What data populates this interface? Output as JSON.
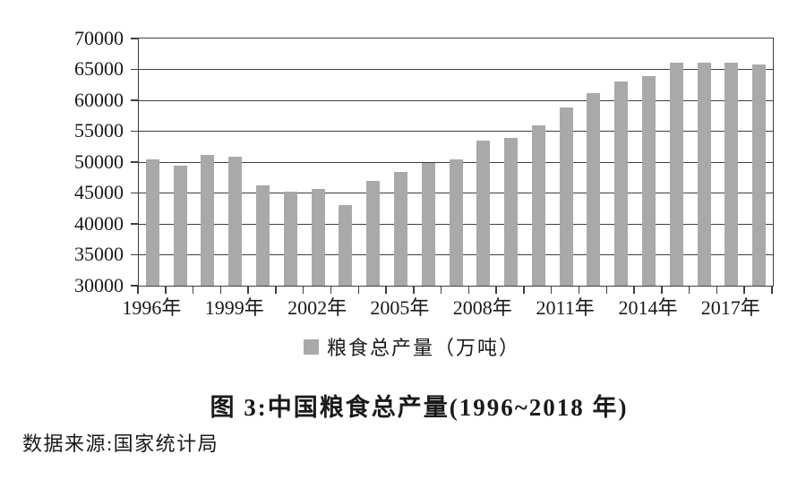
{
  "figure": {
    "title": "图 3:中国粮食总产量(1996~2018 年)",
    "source": "数据来源:国家统计局"
  },
  "chart_data": {
    "type": "bar",
    "title": "图 3:中国粮食总产量(1996~2018 年)",
    "xlabel": "",
    "ylabel": "",
    "legend_label": "粮食总产量（万吨）",
    "legend_position": "bottom",
    "grid": true,
    "categories": [
      1996,
      1997,
      1998,
      1999,
      2000,
      2001,
      2002,
      2003,
      2004,
      2005,
      2006,
      2007,
      2008,
      2009,
      2010,
      2011,
      2012,
      2013,
      2014,
      2015,
      2016,
      2017,
      2018
    ],
    "values": [
      50453.5,
      49417.1,
      51229.5,
      50838.6,
      46217.5,
      45263.7,
      45705.8,
      43069.5,
      46946.9,
      48402.2,
      49804.2,
      50413.9,
      53434.3,
      53940.9,
      55911.3,
      58849.3,
      61222.6,
      63048.2,
      63964.8,
      66060.3,
      66043.5,
      66160.7,
      65789.2
    ],
    "ylim": [
      30000,
      70000
    ],
    "y_step": 5000,
    "y_ticks": [
      30000,
      35000,
      40000,
      45000,
      50000,
      55000,
      60000,
      65000,
      70000
    ],
    "x_tick_labels": [
      "1996年",
      "1999年",
      "2002年",
      "2005年",
      "2008年",
      "2011年",
      "2014年",
      "2017年"
    ],
    "x_tick_step": 3,
    "bar_color": "#a9a9a9",
    "axis_color": "#3f3f3f",
    "text_color": "#1a1a1a"
  }
}
